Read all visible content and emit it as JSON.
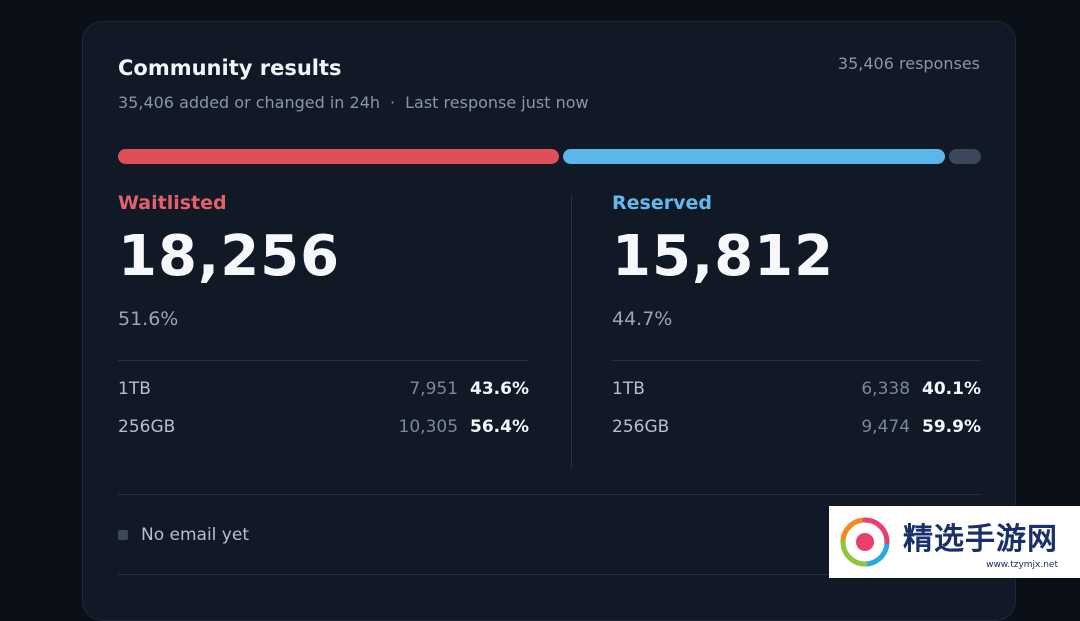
{
  "card": {
    "title": "Community results",
    "subtitle_changed": "35,406 added or changed in 24h",
    "subtitle_separator": "·",
    "subtitle_last": "Last response just now",
    "responses": "35,406 responses"
  },
  "distribution_bar": {
    "waitlisted_fraction": 0.516,
    "reserved_fraction": 0.447,
    "other_fraction": 0.037,
    "colors": {
      "waitlisted": "#df4f57",
      "reserved": "#5bb6ea",
      "other": "#3c4859"
    }
  },
  "waitlisted": {
    "label": "Waitlisted",
    "count": "18,256",
    "percent": "51.6%",
    "rows": [
      {
        "label": "1TB",
        "count": "7,951",
        "percent": "43.6%"
      },
      {
        "label": "256GB",
        "count": "10,305",
        "percent": "56.4%"
      }
    ]
  },
  "reserved": {
    "label": "Reserved",
    "count": "15,812",
    "percent": "44.7%",
    "rows": [
      {
        "label": "1TB",
        "count": "6,338",
        "percent": "40.1%"
      },
      {
        "label": "256GB",
        "count": "9,474",
        "percent": "59.9%"
      }
    ]
  },
  "legend": {
    "no_email_label": "No email yet"
  },
  "watermark": {
    "title": "精选手游网",
    "url": "www.tzymjx.net"
  }
}
